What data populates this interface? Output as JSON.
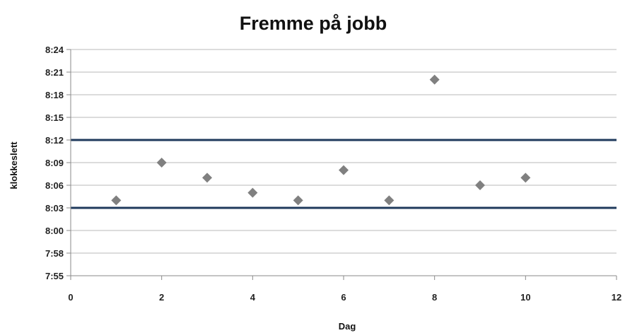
{
  "chart_data": {
    "type": "scatter",
    "title": "Fremme på jobb",
    "xlabel": "Dag",
    "ylabel": "klokkeslett",
    "xlim": [
      0,
      12
    ],
    "x_ticks": [
      0,
      2,
      4,
      6,
      8,
      10,
      12
    ],
    "y_ticks": [
      "7:55",
      "7:58",
      "8:00",
      "8:03",
      "8:06",
      "8:09",
      "8:12",
      "8:15",
      "8:18",
      "8:21",
      "8:24"
    ],
    "grid": true,
    "legend": "none",
    "points": [
      {
        "x": 1,
        "y": "8:04"
      },
      {
        "x": 2,
        "y": "8:09"
      },
      {
        "x": 3,
        "y": "8:07"
      },
      {
        "x": 4,
        "y": "8:05"
      },
      {
        "x": 5,
        "y": "8:04"
      },
      {
        "x": 6,
        "y": "8:08"
      },
      {
        "x": 7,
        "y": "8:04"
      },
      {
        "x": 8,
        "y": "8:20"
      },
      {
        "x": 9,
        "y": "8:06"
      },
      {
        "x": 10,
        "y": "8:07"
      }
    ],
    "reference_lines": [
      {
        "y_start": "8:12",
        "y_end": "8:12"
      },
      {
        "y_start": "8:03",
        "y_end": "8:03"
      }
    ],
    "colors": {
      "points": "#808080",
      "reference_lines": "#1f3a5c",
      "grid": "#b8b8b8",
      "axis": "#8a8a8a"
    }
  }
}
